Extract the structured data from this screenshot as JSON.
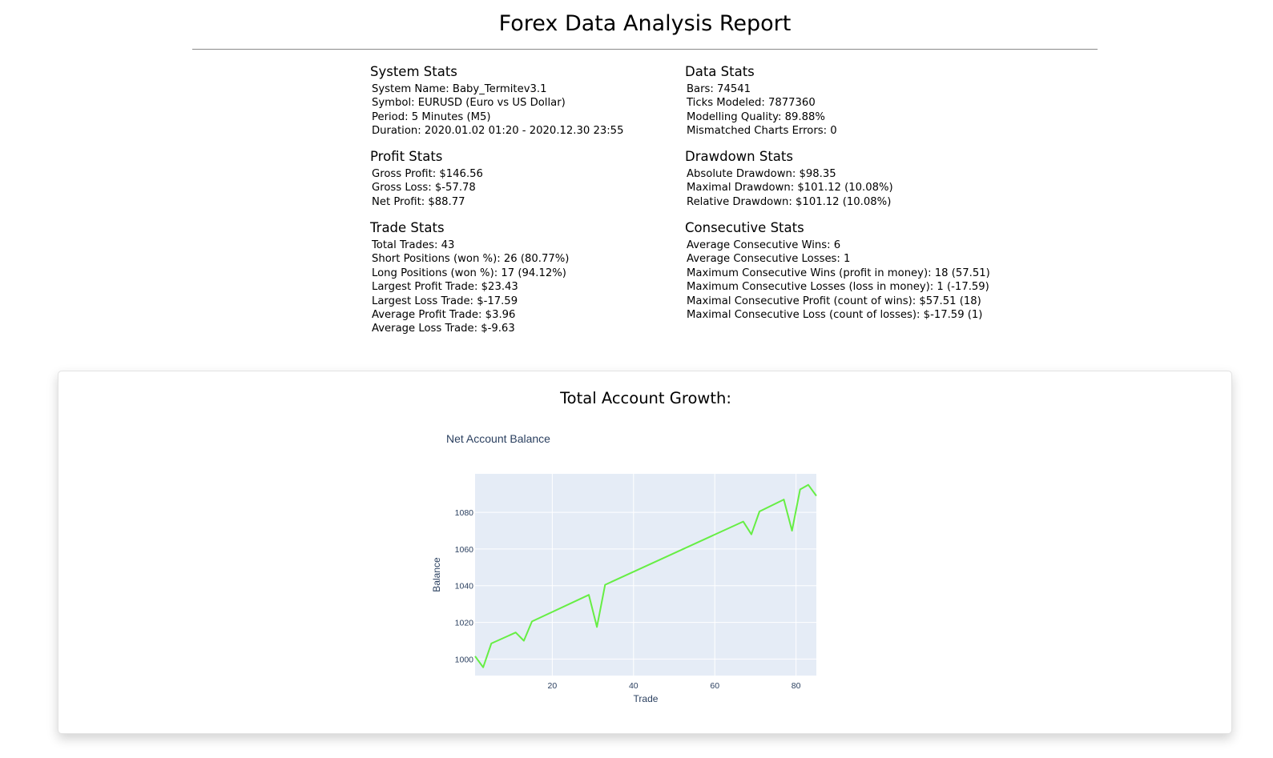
{
  "report": {
    "title": "Forex Data Analysis Report"
  },
  "system_stats": {
    "heading": "System Stats",
    "items": [
      "System Name: Baby_Termitev3.1",
      "Symbol: EURUSD (Euro vs US Dollar)",
      "Period: 5 Minutes (M5)",
      "Duration: 2020.01.02 01:20 - 2020.12.30 23:55"
    ]
  },
  "profit_stats": {
    "heading": "Profit Stats",
    "items": [
      "Gross Profit: $146.56",
      "Gross Loss: $-57.78",
      "Net Profit: $88.77"
    ]
  },
  "trade_stats": {
    "heading": "Trade Stats",
    "items": [
      "Total Trades: 43",
      "Short Positions (won %): 26 (80.77%)",
      "Long Positions (won %): 17 (94.12%)",
      "Largest Profit Trade: $23.43",
      "Largest Loss Trade: $-17.59",
      "Average Profit Trade: $3.96",
      "Average Loss Trade: $-9.63"
    ]
  },
  "data_stats": {
    "heading": "Data Stats",
    "items": [
      "Bars: 74541",
      "Ticks Modeled: 7877360",
      "Modelling Quality: 89.88%",
      "Mismatched Charts Errors: 0"
    ]
  },
  "drawdown_stats": {
    "heading": "Drawdown Stats",
    "items": [
      "Absolute Drawdown: $98.35",
      "Maximal Drawdown: $101.12 (10.08%)",
      "Relative Drawdown: $101.12 (10.08%)"
    ]
  },
  "consecutive_stats": {
    "heading": "Consecutive Stats",
    "items": [
      "Average Consecutive Wins: 6",
      "Average Consecutive Losses: 1",
      "Maximum Consecutive Wins (profit in money): 18 (57.51)",
      "Maximum Consecutive Losses (loss in money): 1 (-17.59)",
      "Maximal Consecutive Profit (count of wins): $57.51 (18)",
      "Maximal Consecutive Loss (count of losses): $-17.59 (1)"
    ]
  },
  "chart_section": {
    "heading": "Total Account Growth:"
  },
  "chart_data": {
    "type": "line",
    "title": "Net Account Balance",
    "xlabel": "Trade",
    "ylabel": "Balance",
    "xlim": [
      1,
      85
    ],
    "ylim": [
      991,
      1101
    ],
    "x_ticks": [
      20,
      40,
      60,
      80
    ],
    "y_ticks": [
      1000,
      1020,
      1040,
      1060,
      1080
    ],
    "grid": true,
    "plot_background": "#e5ecf6",
    "series": [
      {
        "color": "#66ee44",
        "x": [
          1,
          3,
          5,
          11,
          13,
          15,
          29,
          31,
          33,
          67,
          69,
          71,
          77,
          79,
          81,
          83,
          85
        ],
        "y": [
          1001.5,
          995.5,
          1008.5,
          1014.5,
          1010,
          1020.5,
          1035,
          1017.5,
          1040.5,
          1075,
          1068,
          1080.5,
          1087,
          1070,
          1092.5,
          1095,
          1089
        ]
      }
    ]
  }
}
